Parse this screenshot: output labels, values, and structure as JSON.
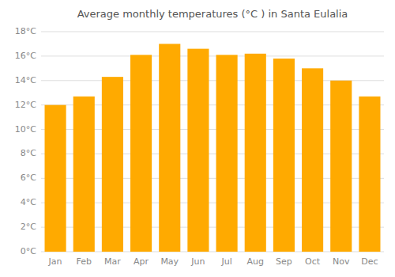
{
  "chart_data": {
    "type": "bar",
    "title": "Average monthly temperatures (°C ) in Santa Eulalia",
    "categories": [
      "Jan",
      "Feb",
      "Mar",
      "Apr",
      "May",
      "Jun",
      "Jul",
      "Aug",
      "Sep",
      "Oct",
      "Nov",
      "Dec"
    ],
    "values": [
      12.0,
      12.7,
      14.3,
      16.1,
      17.0,
      16.6,
      16.1,
      16.2,
      15.8,
      15.0,
      14.0,
      12.7
    ],
    "color": "#FFAA00",
    "ylim": [
      0,
      18
    ],
    "yticks": [
      {
        "value": 0,
        "label": "0°C"
      },
      {
        "value": 2,
        "label": "2°C"
      },
      {
        "value": 4,
        "label": "4°C"
      },
      {
        "value": 6,
        "label": "6°C"
      },
      {
        "value": 8,
        "label": "8°C"
      },
      {
        "value": 10,
        "label": "10°C"
      },
      {
        "value": 12,
        "label": "12°C"
      },
      {
        "value": 14,
        "label": "14°C"
      },
      {
        "value": 16,
        "label": "16°C"
      },
      {
        "value": 18,
        "label": "18°C"
      }
    ],
    "grid": true
  }
}
